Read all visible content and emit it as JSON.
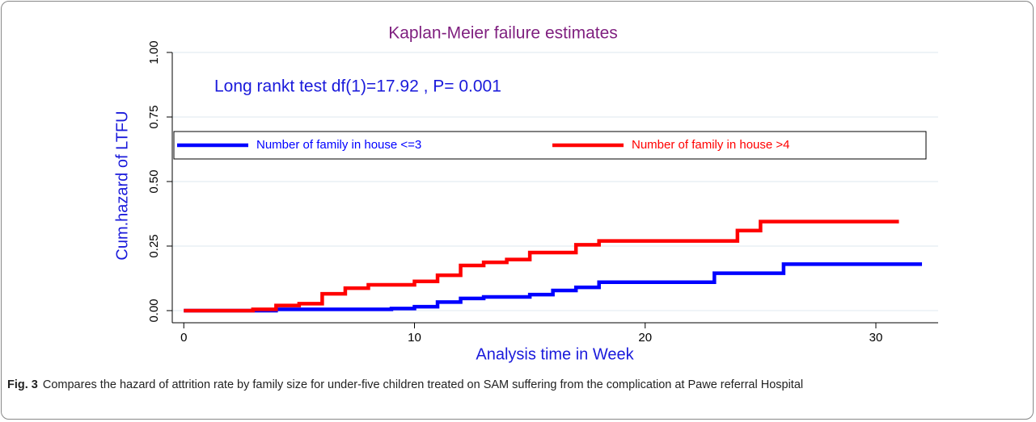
{
  "chart_data": {
    "type": "step",
    "title": "Kaplan-Meier failure estimates",
    "annotation": "Long rankt test df(1)=17.92  , P=  0.001",
    "x_label": "Analysis time in Week",
    "y_label": "Cum.hazard of LTFU",
    "xlim": [
      -0.5,
      32.7
    ],
    "ylim": [
      -0.047,
      1.0
    ],
    "xticks": [
      0,
      10,
      20,
      30
    ],
    "yticks": [
      {
        "value": 0,
        "label": "0.00"
      },
      {
        "value": 0.25,
        "label": "0.25"
      },
      {
        "value": 0.5,
        "label": "0.50"
      },
      {
        "value": 0.75,
        "label": "0.75"
      },
      {
        "value": 1,
        "label": "1.00"
      }
    ],
    "grid": true,
    "series": [
      {
        "name": "Number of family in house <=3",
        "color": "#0000ff",
        "x": [
          0,
          4,
          9,
          10,
          11,
          12,
          13,
          15,
          16,
          17,
          18,
          23,
          26,
          32
        ],
        "values": [
          0,
          0.005,
          0.008,
          0.015,
          0.033,
          0.047,
          0.053,
          0.062,
          0.078,
          0.09,
          0.11,
          0.145,
          0.18,
          0.18
        ]
      },
      {
        "name": "Number of family in house >4",
        "color": "#ff0000",
        "x": [
          0,
          3,
          4,
          5,
          6,
          7,
          8,
          10,
          11,
          12,
          13,
          14,
          15,
          17,
          18,
          24,
          25,
          31
        ],
        "values": [
          0,
          0.005,
          0.02,
          0.027,
          0.065,
          0.087,
          0.1,
          0.113,
          0.137,
          0.175,
          0.187,
          0.198,
          0.225,
          0.255,
          0.27,
          0.31,
          0.345,
          0.345
        ]
      }
    ]
  },
  "caption": {
    "label": "Fig. 3",
    "text": "Compares the hazard of attrition rate by family size for under-five children treated on SAM suffering from the complication at Pawe referral Hospital"
  }
}
